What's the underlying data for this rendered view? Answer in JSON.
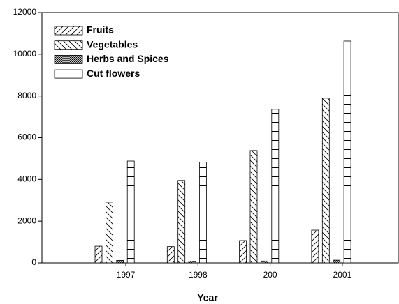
{
  "chart_data": {
    "type": "bar",
    "x_label": "Year",
    "categories": [
      "1997",
      "1998",
      "200",
      "2001"
    ],
    "series": [
      {
        "name": "Fruits",
        "color": "#000000",
        "hatch": "/",
        "values": [
          800,
          780,
          1070,
          1570
        ]
      },
      {
        "name": "Vegetables",
        "color": "#000000",
        "hatch": "\\",
        "values": [
          2910,
          3950,
          5385,
          7895
        ]
      },
      {
        "name": "Herbs and Spices",
        "color": "#000000",
        "hatch": "x",
        "values": [
          120,
          80,
          90,
          130
        ]
      },
      {
        "name": "Cut flowers",
        "color": "#000000",
        "hatch": "-",
        "values": [
          4880,
          4830,
          7360,
          10630
        ]
      }
    ],
    "ylim": [
      0,
      12000
    ],
    "yticks": [
      0,
      2000,
      4000,
      6000,
      8000,
      10000,
      12000
    ],
    "legend": "upper left",
    "grid": false
  }
}
